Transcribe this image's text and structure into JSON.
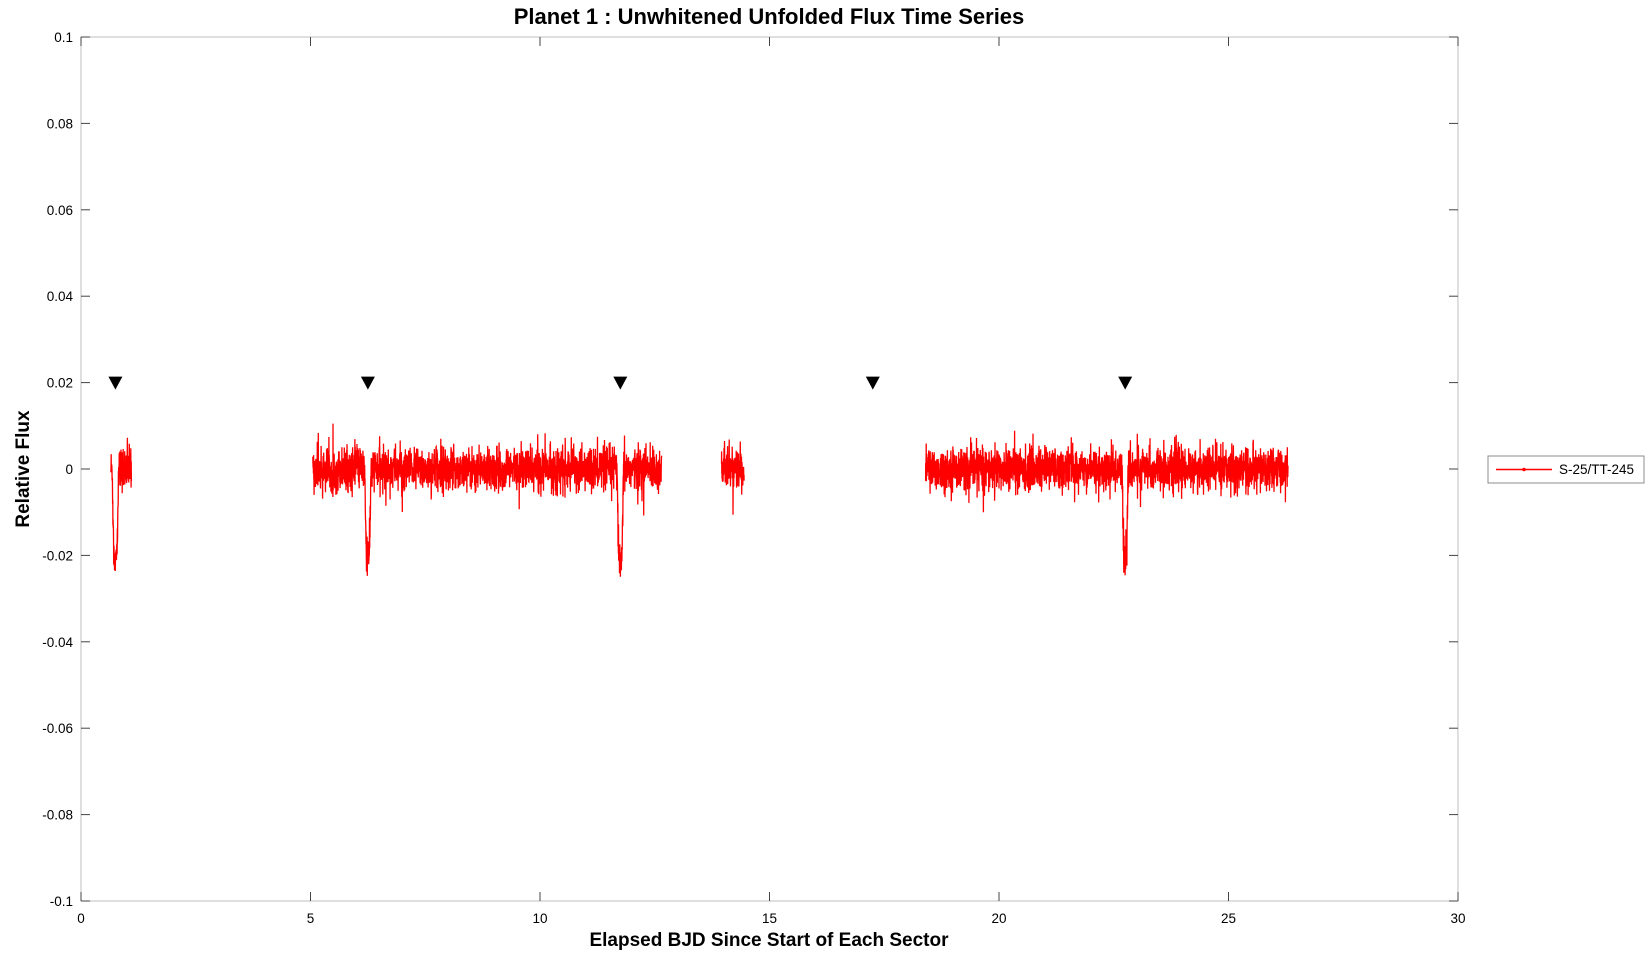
{
  "chart_data": {
    "type": "line",
    "title": "Planet 1 : Unwhitened Unfolded Flux Time Series",
    "xlabel": "Elapsed BJD Since Start of Each Sector",
    "ylabel": "Relative Flux",
    "xlim": [
      0,
      30
    ],
    "ylim": [
      -0.1,
      0.1
    ],
    "xticks": [
      0,
      5,
      10,
      15,
      20,
      25,
      30
    ],
    "yticks": [
      0.1,
      0.08,
      0.06,
      0.04,
      0.02,
      0,
      -0.02,
      -0.04,
      -0.06,
      -0.08,
      -0.1
    ],
    "grid": false,
    "legend_position": "right-outside",
    "series": [
      {
        "name": "S-25/TT-245",
        "color": "#ff0000",
        "segments": [
          {
            "x_start": 0.65,
            "x_end": 1.1,
            "noise": 0.0045
          },
          {
            "x_start": 5.05,
            "x_end": 12.65,
            "noise": 0.0045
          },
          {
            "x_start": 13.95,
            "x_end": 14.45,
            "noise": 0.0045
          },
          {
            "x_start": 18.4,
            "x_end": 26.3,
            "noise": 0.0045
          }
        ],
        "transits": [
          {
            "x": 0.75,
            "depth": -0.025
          },
          {
            "x": 6.25,
            "depth": -0.024
          },
          {
            "x": 11.75,
            "depth": -0.027
          },
          {
            "x": 22.75,
            "depth": -0.024
          }
        ]
      }
    ],
    "markers": {
      "shape": "down-triangle",
      "color": "#000000",
      "y": 0.02,
      "x": [
        0.75,
        6.25,
        11.75,
        17.25,
        22.75
      ]
    }
  }
}
